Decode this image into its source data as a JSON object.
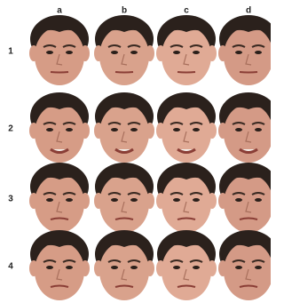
{
  "columns": [
    "a",
    "b",
    "c",
    "d"
  ],
  "rows": [
    "1",
    "2",
    "3",
    "4"
  ]
}
